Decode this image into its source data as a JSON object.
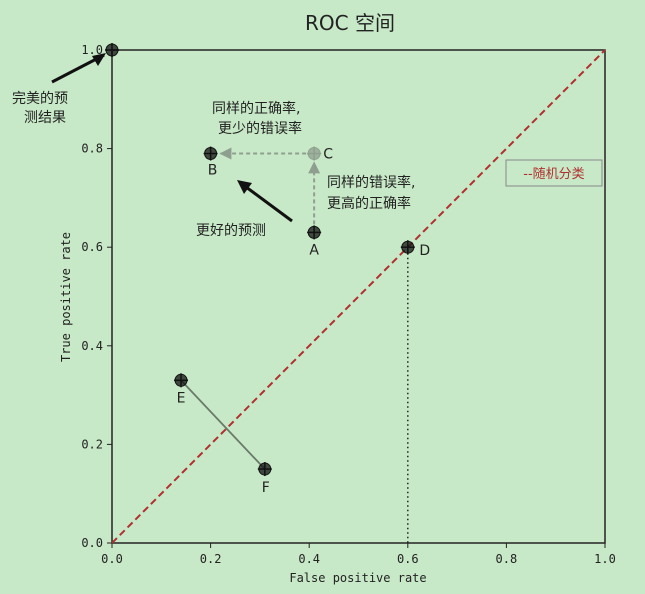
{
  "chart_data": {
    "type": "scatter",
    "title": "ROC 空间",
    "xlabel": "False positive rate",
    "ylabel": "True positive rate",
    "xlim": [
      0,
      1
    ],
    "ylim": [
      0,
      1
    ],
    "xticks": [
      "0.0",
      "0.2",
      "0.4",
      "0.6",
      "0.8",
      "1.0"
    ],
    "yticks": [
      "0.0",
      "0.2",
      "0.4",
      "0.6",
      "0.8",
      "1.0"
    ],
    "grid": false,
    "points": [
      {
        "label": "",
        "x": 0.0,
        "y": 1.0,
        "color": "#111111"
      },
      {
        "label": "A",
        "x": 0.41,
        "y": 0.63,
        "color": "#111111"
      },
      {
        "label": "B",
        "x": 0.2,
        "y": 0.79,
        "color": "#111111"
      },
      {
        "label": "C",
        "x": 0.41,
        "y": 0.79,
        "color": "#8f9f8f"
      },
      {
        "label": "D",
        "x": 0.6,
        "y": 0.6,
        "color": "#111111"
      },
      {
        "label": "E",
        "x": 0.14,
        "y": 0.33,
        "color": "#111111"
      },
      {
        "label": "F",
        "x": 0.31,
        "y": 0.15,
        "color": "#111111"
      }
    ],
    "random_line": {
      "x": [
        0,
        1
      ],
      "y": [
        0,
        1
      ],
      "color": "#b03030"
    },
    "legend": {
      "text": "--随机分类",
      "placement": "right"
    },
    "annotations": {
      "perfect": [
        "完美的预",
        "测结果"
      ],
      "same_accuracy": [
        "同样的正确率,",
        "更少的错误率"
      ],
      "same_error": [
        "同样的错误率,",
        "更高的正确率"
      ],
      "better": "更好的预测"
    }
  }
}
